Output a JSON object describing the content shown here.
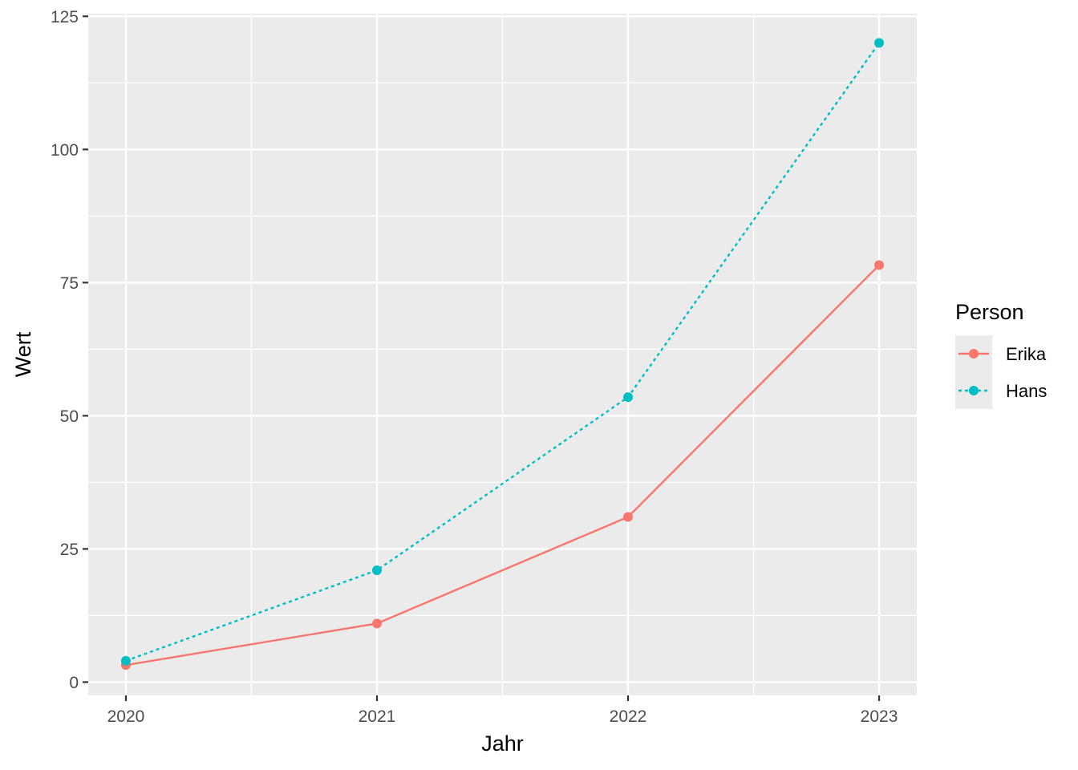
{
  "chart_data": {
    "type": "line",
    "xlabel": "Jahr",
    "ylabel": "Wert",
    "x": [
      2020,
      2021,
      2022,
      2023
    ],
    "x_tick_labels": [
      "2020",
      "2021",
      "2022",
      "2023"
    ],
    "y_ticks": [
      0,
      25,
      50,
      75,
      100,
      125
    ],
    "y_tick_labels": [
      "0",
      "25",
      "50",
      "75",
      "100",
      "125"
    ],
    "xlim": [
      2019.85,
      2023.15
    ],
    "ylim": [
      -2.5,
      125.5
    ],
    "grid": true,
    "legend": {
      "title": "Person",
      "position": "right"
    },
    "series": [
      {
        "name": "Erika",
        "values": [
          3.2,
          11,
          31,
          78.3
        ],
        "color": "#F8766D",
        "line_style": "solid"
      },
      {
        "name": "Hans",
        "values": [
          4,
          21,
          53.5,
          120
        ],
        "color": "#00BFC4",
        "line_style": "dotted"
      }
    ]
  }
}
